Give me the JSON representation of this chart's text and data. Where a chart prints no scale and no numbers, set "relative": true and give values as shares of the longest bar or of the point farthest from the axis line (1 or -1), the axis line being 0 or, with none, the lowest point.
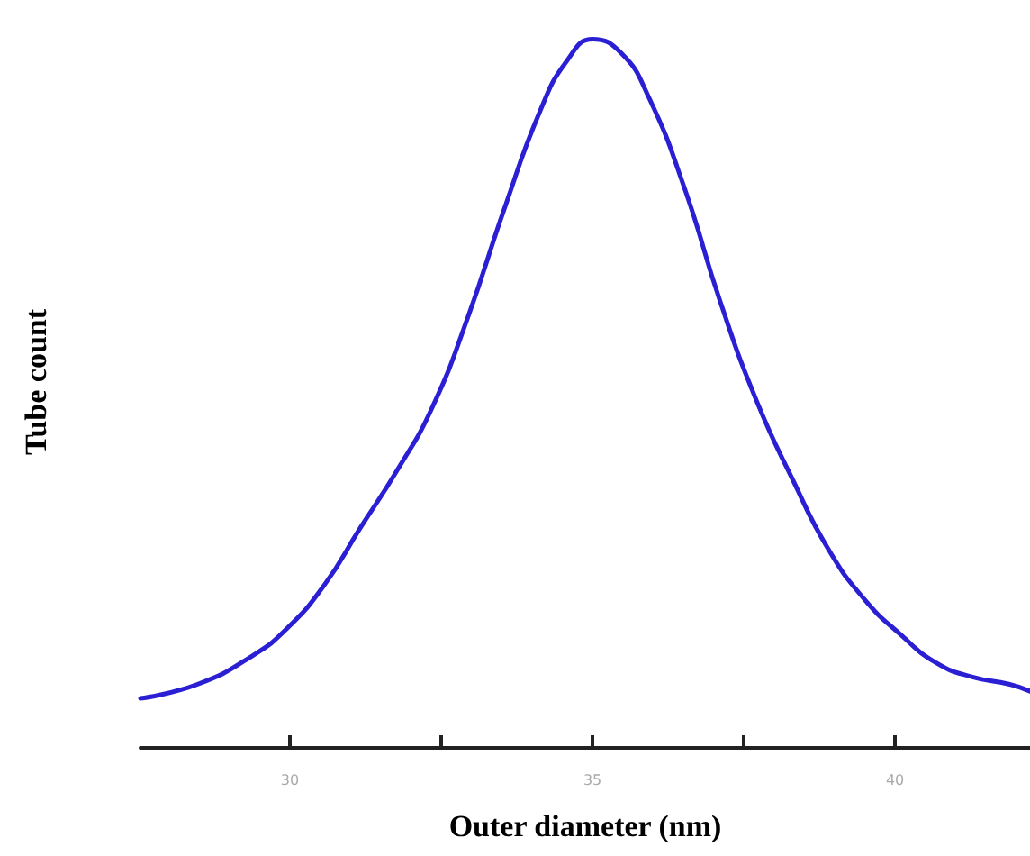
{
  "chart_data": {
    "type": "line",
    "relative": true,
    "xlabel": "Outer diameter (nm)",
    "ylabel": "Tube count",
    "xlim": [
      27.53,
      42.23
    ],
    "xticks": [
      30,
      {
        "value": 32.5,
        "label": null
      },
      35,
      {
        "value": 37.5,
        "label": null
      },
      40
    ],
    "x": [
      27.53,
      28.48,
      29.38,
      29.97,
      30.57,
      31.16,
      31.76,
      32.35,
      32.95,
      33.54,
      34.14,
      34.58,
      35.0,
      35.48,
      35.92,
      36.52,
      37.11,
      37.71,
      38.3,
      38.9,
      39.49,
      40.09,
      40.68,
      41.28,
      41.88,
      42.23
    ],
    "series": [
      {
        "color": "#2b1fd4",
        "values": [
          0.07,
          0.09,
          0.13,
          0.17,
          0.23,
          0.31,
          0.39,
          0.48,
          0.61,
          0.76,
          0.9,
          0.97,
          1.0,
          0.98,
          0.92,
          0.79,
          0.63,
          0.49,
          0.38,
          0.28,
          0.21,
          0.16,
          0.12,
          0.1,
          0.09,
          0.08
        ]
      }
    ],
    "marker": "none",
    "line_style": "solid"
  }
}
